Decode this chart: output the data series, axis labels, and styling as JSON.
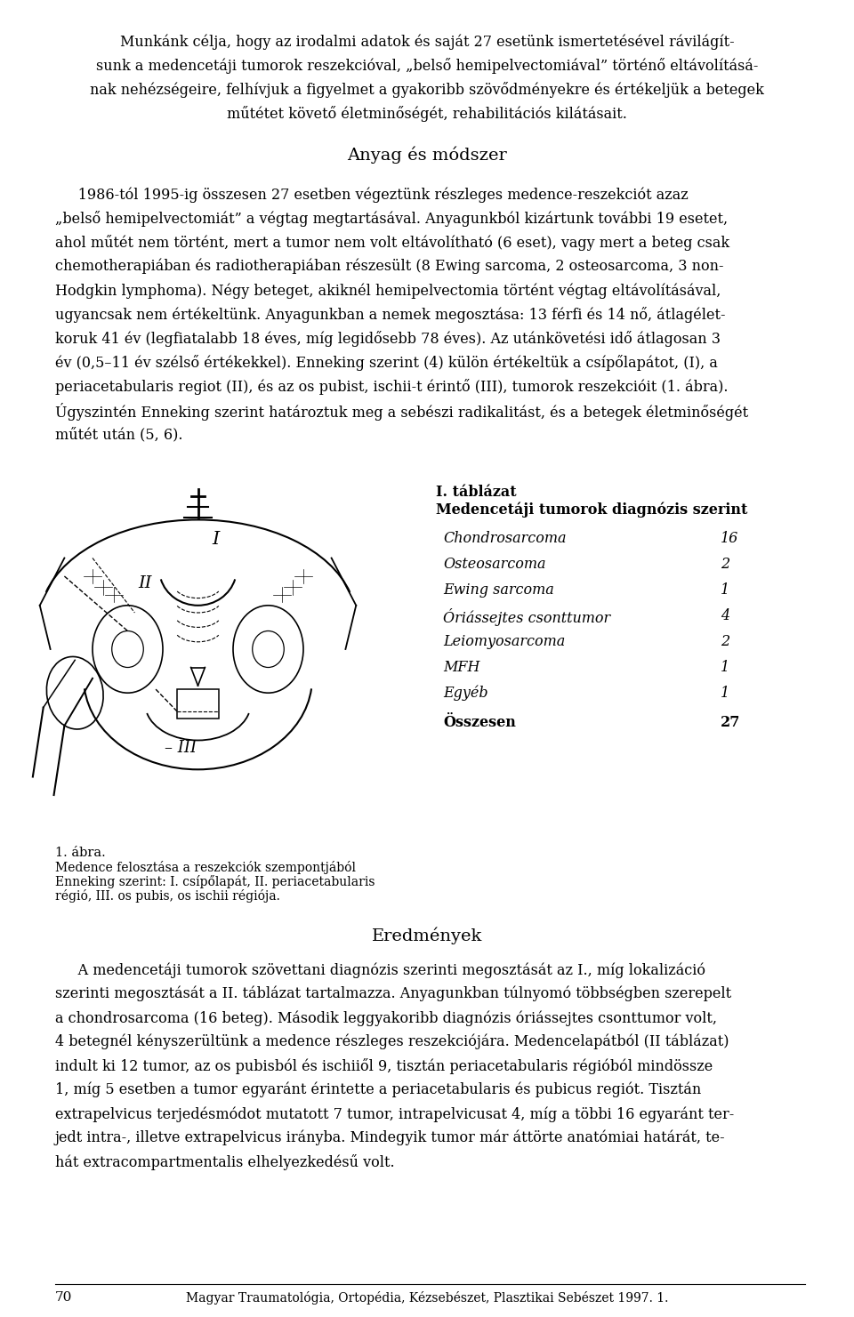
{
  "bg_color": "#ffffff",
  "top_para_lines": [
    "Munkánk célja, hogy az irodalmi adatok és saját 27 esetünk ismertetésével rávilágít-",
    "sunk a medencetáji tumorok reszekcióval, „belső hemipelvectomiával” történő eltávolításá-",
    "nak nehézségeire, felhívjuk a figyelmet a gyakoribb szövődményekre és értékeljük a betegek",
    "műtétet követő életminőségét, rehabilitációs kilátásait."
  ],
  "section_heading": "Anyag és módszer",
  "body1_lines": [
    "     1986-tól 1995-ig összesen 27 esetben végeztünk részleges medence-reszekciót azaz",
    "„belső hemipelvectomiát” a végtag megtartásával. Anyagunkból kizártunk további 19 esetet,",
    "ahol műtét nem történt, mert a tumor nem volt eltávolítható (6 eset), vagy mert a beteg csak",
    "chemotherapiában és radiotherapiában részesült (8 Ewing sarcoma, 2 osteosarcoma, 3 non-",
    "Hodgkin lymphoma). Négy beteget, akiknél hemipelvectomia történt végtag eltávolításával,",
    "ugyancsak nem értékeltünk. Anyagunkban a nemek megosztása: 13 férfi és 14 nő, átlagélet-",
    "koruk 41 év (legfiatalabb 18 éves, míg legidősebb 78 éves). Az utánkövetési idő átlagosan 3",
    "év (0,5–11 év szélső értékekkel). Enneking szerint (4) külön értékeltük a csípőlapátot, (I), a",
    "periacetabularis regiot (II), és az os pubist, ischii-t érintő (III), tumorok reszekcióit (1. ábra).",
    "Úgyszintén Enneking szerint határoztuk meg a sebészi radikalitást, és a betegek életminőségét",
    "műtét után (5, 6)."
  ],
  "table_title1": "I. táblázat",
  "table_title2": "Medencetáji tumorok diagnózis szerint",
  "table_rows": [
    [
      "Chondrosarcoma",
      "16"
    ],
    [
      "Osteosarcoma",
      "2"
    ],
    [
      "Ewing sarcoma",
      "1"
    ],
    [
      "Óriássejtes csonttumor",
      "4"
    ],
    [
      "Leiomyosarcoma",
      "2"
    ],
    [
      "MFH",
      "1"
    ],
    [
      "Egyéb",
      "1"
    ]
  ],
  "table_total_label": "Összesen",
  "table_total_value": "27",
  "figure_caption_lines": [
    "1. ábra.",
    "Medence felosztása a reszekciók szempontjából",
    "Enneking szerint: I. csípőlapát, II. periacetabularis",
    "régió, III. os pubis, os ischii régiója."
  ],
  "eredmenyek_heading": "Eredmények",
  "ered_lines": [
    "     A medencetáji tumorok szövettani diagnózis szerinti megosztását az I., míg lokalizáció",
    "szerinti megosztását a II. táblázat tartalmazza. Anyagunkban túlnyomó többségben szerepelt",
    "a chondrosarcoma (16 beteg). Második leggyakoribb diagnózis óriássejtes csonttumor volt,",
    "4 betegnél kényszerültünk a medence részleges reszekciójára. Medencelapátból (II táblázat)",
    "indult ki 12 tumor, az os pubisból és ischiiől 9, tisztán periacetabularis régióból mindössze",
    "1, míg 5 esetben a tumor egyaránt érintette a periacetabularis és pubicus regiót. Tisztán",
    "extrapelvicus terjedésmódot mutatott 7 tumor, intrapelvicusat 4, míg a többi 16 egyaránt ter-",
    "jedt intra-, illetve extrapelvicus irányba. Mindegyik tumor már áttörte anatómiai határát, te-",
    "hát extracompartmentalis elhelyezkedésű volt."
  ],
  "footer_page": "70",
  "footer_journal": "Magyar Traumatológia, Ortopédia, Kézsebészet, Plasztikai Sebészet 1997. 1."
}
